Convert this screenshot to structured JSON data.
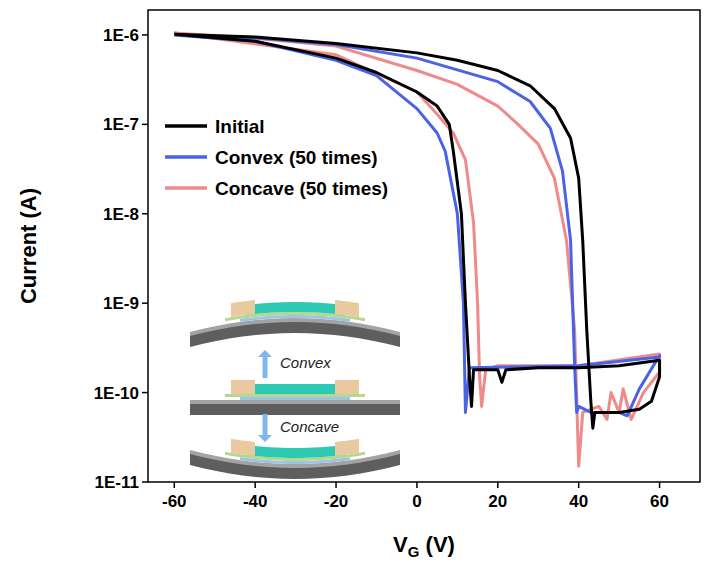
{
  "chart_data": {
    "type": "line",
    "log": "y",
    "grid": false,
    "legend": "upper left",
    "x_label": {
      "text": "V",
      "subscript": "G",
      "suffix": " (V)"
    },
    "y_label": "Current (A)",
    "xlim": [
      -66.5,
      70
    ],
    "ylim": [
      1e-11,
      1.9e-06
    ],
    "xticks": [
      -60,
      -40,
      -20,
      0,
      20,
      40,
      60
    ],
    "yticks": [
      {
        "value": 1e-11,
        "label": "1E-11"
      },
      {
        "value": 1e-10,
        "label": "1E-10"
      },
      {
        "value": 1e-09,
        "label": "1E-9"
      },
      {
        "value": 1e-08,
        "label": "1E-8"
      },
      {
        "value": 1e-07,
        "label": "1E-7"
      },
      {
        "value": 1e-06,
        "label": "1E-6"
      }
    ],
    "annotations": [
      "Convex",
      "Concave"
    ],
    "series": [
      {
        "name": "Initial",
        "color": "#000000",
        "x": [
          -60,
          -40,
          -20,
          0,
          10,
          20,
          28,
          34,
          38,
          40,
          41,
          42,
          43,
          43.5,
          44,
          50,
          55,
          58,
          60,
          60,
          50,
          40,
          30,
          22,
          21,
          20,
          14,
          13.5,
          13,
          12,
          11,
          9,
          8,
          5,
          0,
          -10,
          -20,
          -40,
          -60
        ],
        "values": [
          1.02e-06,
          9.5e-07,
          8e-07,
          6.3e-07,
          5.2e-07,
          4e-07,
          2.7e-07,
          1.5e-07,
          7e-08,
          2.5e-08,
          5e-09,
          5e-10,
          8e-11,
          4e-11,
          6e-11,
          6e-11,
          6.5e-11,
          8e-11,
          1.5e-10,
          2.3e-10,
          2e-10,
          1.9e-10,
          1.9e-10,
          1.8e-10,
          1.3e-10,
          1.8e-10,
          1.8e-10,
          7e-11,
          1.5e-10,
          1e-09,
          1e-08,
          5e-08,
          1e-07,
          1.6e-07,
          2.3e-07,
          3.8e-07,
          5.5e-07,
          8.5e-07,
          1.02e-06
        ]
      },
      {
        "name": "Convex (50 times)",
        "color": "#4a63e6",
        "x": [
          -60,
          -40,
          -20,
          0,
          20,
          28,
          33,
          36,
          38,
          39,
          39.5,
          40,
          43,
          50,
          52,
          55,
          60,
          60,
          40,
          13,
          12,
          11.5,
          10,
          7,
          5,
          0,
          -10,
          -20,
          -40,
          -60
        ],
        "values": [
          1e-06,
          9.3e-07,
          7.8e-07,
          5.5e-07,
          3e-07,
          1.8e-07,
          9e-08,
          3e-08,
          5e-09,
          2e-10,
          6e-11,
          7e-11,
          6e-11,
          6e-11,
          5.5e-11,
          1.1e-10,
          2.6e-10,
          2.5e-10,
          2e-10,
          1.9e-10,
          6e-11,
          1e-09,
          1e-08,
          5e-08,
          8e-08,
          1.5e-07,
          3.5e-07,
          5.2e-07,
          8.5e-07,
          1e-06
        ]
      },
      {
        "name": "Concave (50 times)",
        "color": "#f08a8a",
        "x": [
          -60,
          -40,
          -20,
          0,
          10,
          20,
          25,
          30,
          34,
          37,
          39,
          40,
          41,
          45,
          47,
          48,
          50,
          51,
          53,
          56,
          60,
          60,
          40,
          20,
          17,
          16,
          15.5,
          15,
          14,
          12,
          9,
          5,
          0,
          -20,
          -60
        ],
        "values": [
          1.05e-06,
          9.2e-07,
          7.5e-07,
          4e-07,
          2.8e-07,
          1.6e-07,
          1e-07,
          6e-08,
          2.5e-08,
          5e-09,
          5e-10,
          1.5e-11,
          6e-11,
          7e-11,
          5e-11,
          1e-10,
          6e-11,
          1.1e-10,
          5e-11,
          1e-10,
          1.7e-10,
          2.7e-10,
          2e-10,
          2e-10,
          1.8e-10,
          7e-11,
          1.5e-10,
          1e-09,
          8e-09,
          4e-08,
          8e-08,
          1.3e-07,
          2.3e-07,
          6e-07,
          1.05e-06
        ]
      }
    ]
  }
}
